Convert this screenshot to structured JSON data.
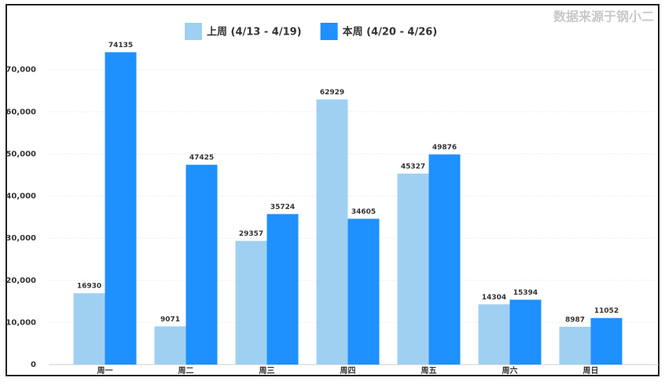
{
  "chart_data": {
    "type": "bar",
    "source": "数据来源于钢小二",
    "categories": [
      "周一",
      "周二",
      "周三",
      "周四",
      "周五",
      "周六",
      "周日"
    ],
    "series": [
      {
        "name": "上周 (4/13 - 4/19)",
        "color": "#9fd0f2",
        "values": [
          16930,
          9071,
          29357,
          62929,
          45327,
          14304,
          8987
        ]
      },
      {
        "name": "本周 (4/20 - 4/26)",
        "color": "#1e90ff",
        "values": [
          74135,
          47425,
          35724,
          34605,
          49876,
          15394,
          11052
        ]
      }
    ],
    "ylim": [
      0,
      80000
    ],
    "yticks": [
      0,
      {
        "value": 10000,
        "label": "10,000"
      },
      {
        "value": 20000,
        "label": "20,000"
      },
      {
        "value": 30000,
        "label": "30,000"
      },
      {
        "value": 40000,
        "label": "40,000"
      },
      {
        "value": 50000,
        "label": "50,000"
      },
      {
        "value": 60000,
        "label": "60,000"
      },
      {
        "value": 70000,
        "label": "70,000"
      }
    ],
    "grid": true,
    "legend": "top"
  }
}
